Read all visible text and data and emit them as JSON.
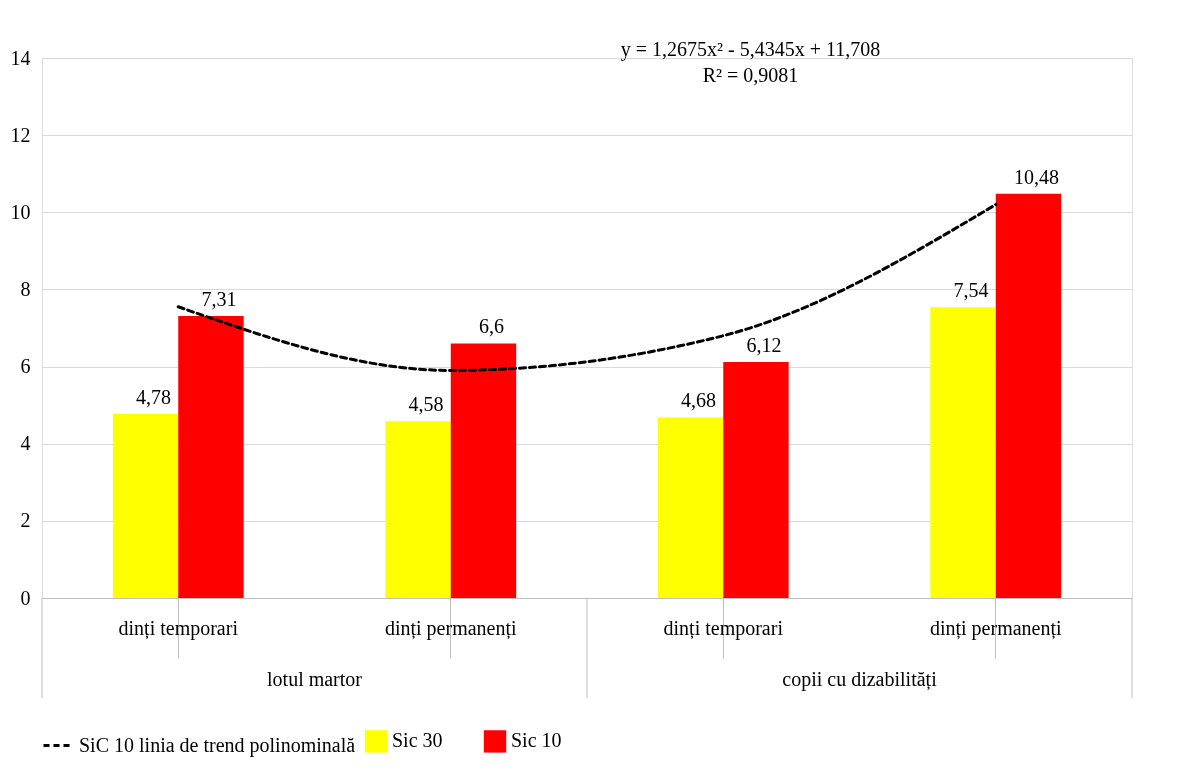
{
  "chart_data": {
    "type": "bar",
    "categories": [
      "dinți temporari",
      "dinți permanenți",
      "dinți temporari",
      "dinți permanenți"
    ],
    "series": [
      {
        "name": "Sic 30",
        "color": "#ffff00",
        "values": [
          4.78,
          4.58,
          4.68,
          7.54
        ],
        "value_labels": [
          "4,78",
          "4,58",
          "4,68",
          "7,54"
        ]
      },
      {
        "name": "Sic 10",
        "color": "#ff0000",
        "values": [
          7.31,
          6.6,
          6.12,
          10.48
        ],
        "value_labels": [
          "7,31",
          "6,6",
          "6,12",
          "10,48"
        ]
      },
      {
        "name": "SiC 10 linia de trend polinominală",
        "type": "line",
        "color": "#000000",
        "line_style": "dashed",
        "values": [
          7.55,
          5.9,
          6.8,
          10.2
        ]
      }
    ],
    "ylim": [
      0,
      14
    ],
    "yticks": [
      0,
      2,
      4,
      6,
      8,
      10,
      12,
      14
    ],
    "grid": "y",
    "legend": "bottom",
    "annotations": [
      "y = 1,2675x² - 5,4345x + 11,708",
      "R² = 0,9081",
      "lotul martor",
      "copii cu dizabilități"
    ]
  }
}
